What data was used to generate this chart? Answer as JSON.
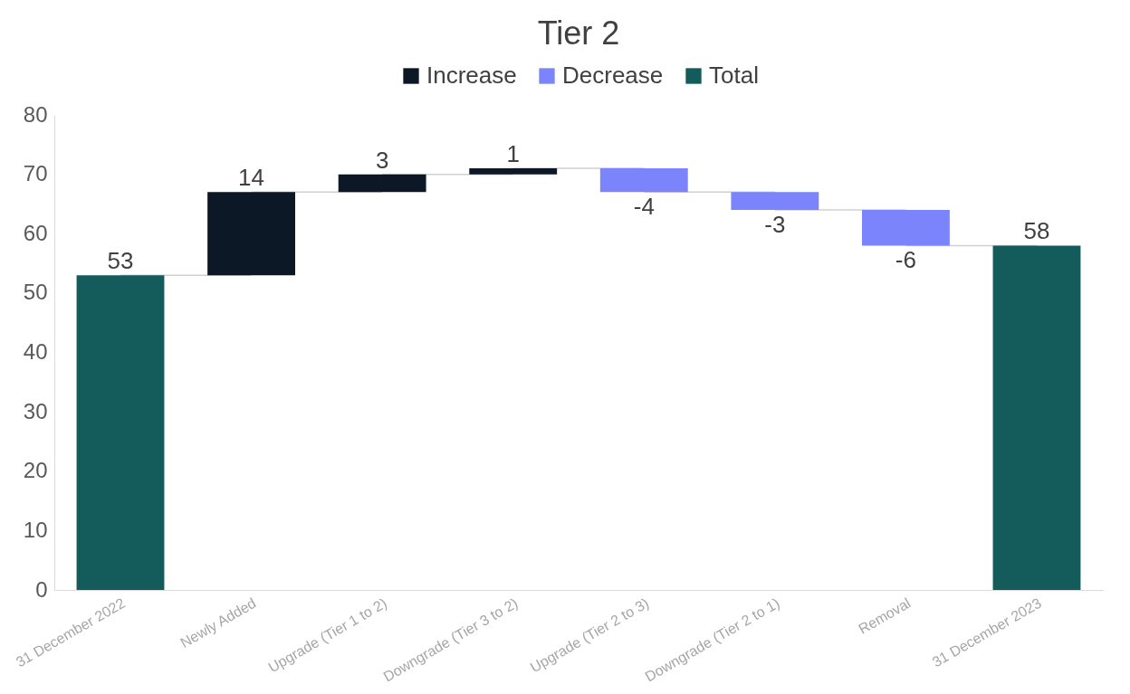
{
  "chart_data": {
    "type": "bar",
    "title": "Tier 2",
    "categories": [
      "31 December 2022",
      "Newly Added",
      "Upgrade (Tier 1 to 2)",
      "Downgrade (Tier 3 to 2)",
      "Upgrade (Tier 2 to 3)",
      "Downgrade (Tier 2 to 1)",
      "Removal",
      "31 December 2023"
    ],
    "series": [
      {
        "name": "Increase",
        "color": "#0d1826",
        "values": [
          null,
          14,
          3,
          1,
          null,
          null,
          null,
          null
        ],
        "base": [
          null,
          53,
          67,
          70,
          null,
          null,
          null,
          null
        ]
      },
      {
        "name": "Decrease",
        "color": "#7b84fb",
        "values": [
          null,
          null,
          null,
          null,
          -4,
          -3,
          -6,
          null
        ],
        "base": [
          null,
          null,
          null,
          null,
          71,
          67,
          64,
          null
        ]
      },
      {
        "name": "Total",
        "color": "#145c5c",
        "values": [
          53,
          null,
          null,
          null,
          null,
          null,
          null,
          58
        ],
        "base": [
          0,
          null,
          null,
          null,
          null,
          null,
          null,
          0
        ]
      }
    ],
    "ylim": [
      0,
      80
    ],
    "yticks": [
      0,
      10,
      20,
      30,
      40,
      50,
      60,
      70,
      80
    ],
    "grid": false,
    "legend": "top",
    "data_labels": true
  }
}
